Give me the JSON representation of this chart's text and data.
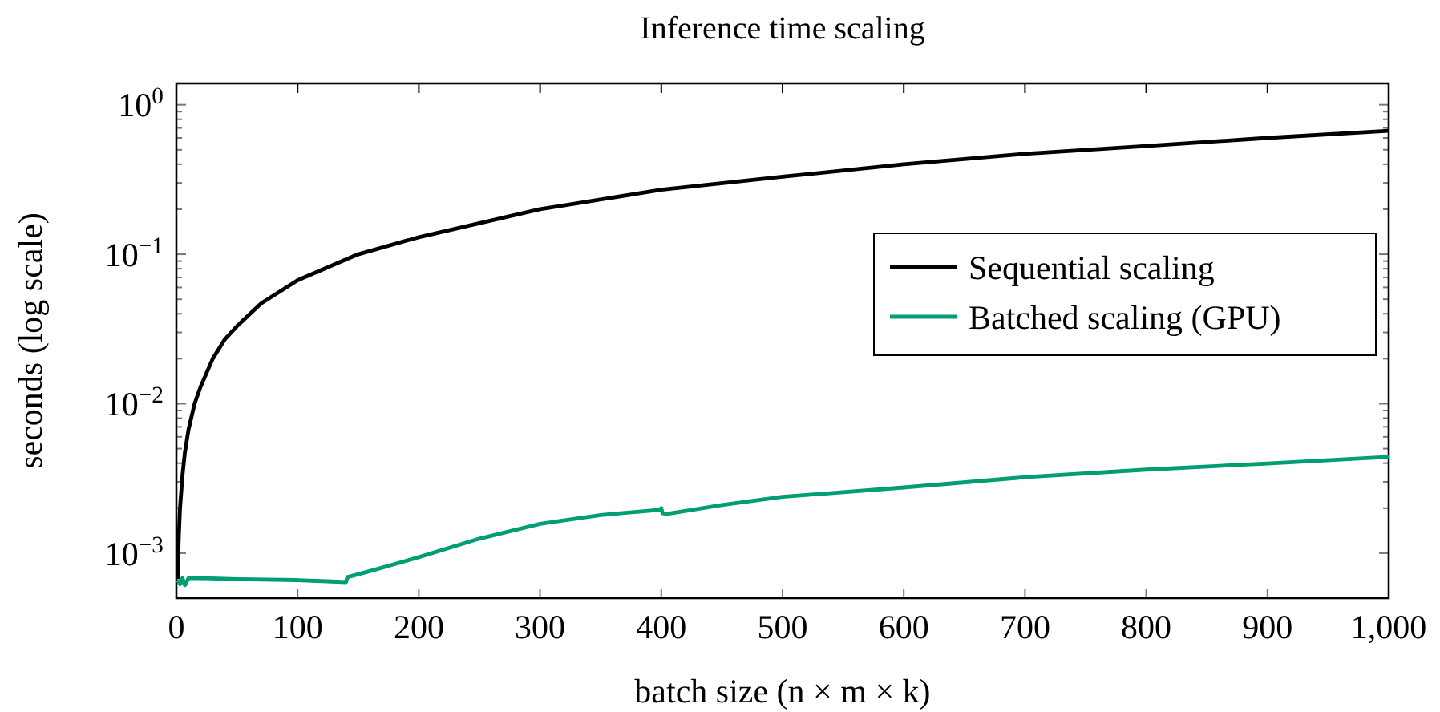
{
  "chart_data": {
    "type": "line",
    "title": "Inference time scaling",
    "xlabel": "batch size (n × m × k)",
    "ylabel": "seconds (log scale)",
    "log": "y",
    "xlim": [
      0,
      1000
    ],
    "ylim": [
      0.0005,
      1.39
    ],
    "xticks": [
      0,
      100,
      200,
      300,
      400,
      500,
      600,
      700,
      800,
      900,
      {
        "value": 1000,
        "label": "1,000"
      }
    ],
    "yticks": [
      {
        "value": 0.001,
        "label": "10$^{−3}$"
      },
      {
        "value": 0.002,
        "label": null
      },
      {
        "value": 0.003,
        "label": null
      },
      {
        "value": 0.004,
        "label": null
      },
      {
        "value": 0.005,
        "label": null
      },
      {
        "value": 0.006,
        "label": null
      },
      {
        "value": 0.007,
        "label": null
      },
      {
        "value": 0.008,
        "label": null
      },
      {
        "value": 0.009,
        "label": null
      },
      {
        "value": 0.01,
        "label": "10$^{−2}$"
      },
      {
        "value": 0.02,
        "label": null
      },
      {
        "value": 0.03,
        "label": null
      },
      {
        "value": 0.04,
        "label": null
      },
      {
        "value": 0.05,
        "label": null
      },
      {
        "value": 0.06,
        "label": null
      },
      {
        "value": 0.07,
        "label": null
      },
      {
        "value": 0.08,
        "label": null
      },
      {
        "value": 0.09,
        "label": null
      },
      {
        "value": 0.1,
        "label": "10$^{−1}$"
      },
      {
        "value": 0.2,
        "label": null
      },
      {
        "value": 0.3,
        "label": null
      },
      {
        "value": 0.4,
        "label": null
      },
      {
        "value": 0.5,
        "label": null
      },
      {
        "value": 0.6,
        "label": null
      },
      {
        "value": 0.7,
        "label": null
      },
      {
        "value": 0.8,
        "label": null
      },
      {
        "value": 0.9,
        "label": null
      },
      {
        "value": 1,
        "label": "10$^{0}$"
      }
    ],
    "grid": false,
    "legend": "right",
    "marker": "none",
    "line_style": "solid",
    "series": [
      {
        "name": "Sequential scaling",
        "color": "#000000",
        "x": [
          1,
          2,
          3,
          5,
          7,
          10,
          15,
          20,
          30,
          40,
          50,
          70,
          100,
          150,
          200,
          300,
          400,
          500,
          600,
          700,
          800,
          900,
          1000
        ],
        "values": [
          0.00067,
          0.0013,
          0.002,
          0.0033,
          0.0047,
          0.0067,
          0.01,
          0.013,
          0.02,
          0.027,
          0.033,
          0.047,
          0.067,
          0.1,
          0.13,
          0.2,
          0.27,
          0.33,
          0.4,
          0.47,
          0.53,
          0.6,
          0.67
        ]
      },
      {
        "name": "Batched scaling (GPU)",
        "color": "#009e73",
        "x": [
          1,
          3,
          5,
          7,
          10,
          20,
          50,
          100,
          120,
          140,
          141,
          160,
          200,
          250,
          300,
          350,
          399,
          400,
          401,
          405,
          450,
          500,
          600,
          700,
          800,
          900,
          1000
        ],
        "values": [
          0.00066,
          0.00062,
          0.00068,
          0.00061,
          0.00068,
          0.00068,
          0.00067,
          0.00066,
          0.00065,
          0.00064,
          0.00069,
          0.00076,
          0.00094,
          0.00125,
          0.00157,
          0.0018,
          0.00195,
          0.002,
          0.00185,
          0.00183,
          0.0021,
          0.00238,
          0.00275,
          0.00322,
          0.00362,
          0.00398,
          0.0044
        ]
      }
    ]
  }
}
